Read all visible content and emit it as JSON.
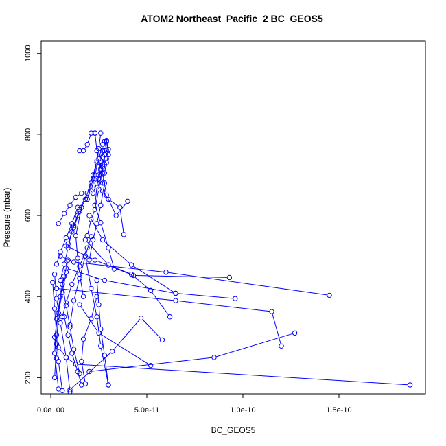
{
  "chart_data": {
    "type": "line",
    "title": "ATOM2 Northeast_Pacific_2 BC_GEOS5",
    "xlabel": "BC_GEOS5",
    "ylabel": "Pressure (mbar)",
    "xlim": [
      -5e-12,
      1.95e-10
    ],
    "ylim": [
      1030,
      160
    ],
    "y_inverted": true,
    "x_ticks": [
      {
        "value": 0,
        "label": "0.0e+00"
      },
      {
        "value": 5e-11,
        "label": "5.0e-11"
      },
      {
        "value": 1e-10,
        "label": "1.0e-10"
      },
      {
        "value": 1.5e-10,
        "label": "1.5e-10"
      }
    ],
    "y_ticks": [
      {
        "value": 200,
        "label": "200"
      },
      {
        "value": 400,
        "label": "400"
      },
      {
        "value": 600,
        "label": "600"
      },
      {
        "value": 800,
        "label": "800"
      },
      {
        "value": 1000,
        "label": "1000"
      }
    ],
    "grid": false,
    "legend": "none",
    "series_color": "#0000ff",
    "marker": "open-circle",
    "series": [
      {
        "x": [
          1.87e-10,
          1.3e-11,
          8e-12,
          4e-12
        ],
        "y": [
          182,
          233,
          250,
          275
        ]
      },
      {
        "x": [
          1.2e-10,
          1.15e-10,
          6.5e-11,
          3e-12
        ],
        "y": [
          278,
          363,
          390,
          420
        ]
      },
      {
        "x": [
          1.27e-10,
          8.5e-11,
          2e-11
        ],
        "y": [
          310,
          250,
          215
        ]
      },
      {
        "x": [
          1.45e-10,
          6e-11,
          1.2e-11,
          5e-12
        ],
        "y": [
          403,
          460,
          485,
          500
        ]
      },
      {
        "x": [
          9.6e-11,
          6.5e-11,
          2.8e-11,
          8e-12
        ],
        "y": [
          395,
          408,
          440,
          470
        ]
      },
      {
        "x": [
          9.3e-11,
          4.3e-11,
          2.3e-11,
          8e-12
        ],
        "y": [
          447,
          452,
          490,
          525
        ]
      },
      {
        "x": [
          6.2e-11,
          5.2e-11,
          4.2e-11,
          3e-11,
          1.8e-11
        ],
        "y": [
          350,
          415,
          455,
          478,
          540
        ]
      },
      {
        "x": [
          5.8e-11,
          4.7e-11,
          3.2e-11,
          1e-11
        ],
        "y": [
          293,
          347,
          265,
          170
        ]
      },
      {
        "x": [
          6.5e-11,
          4.2e-11,
          2.7e-11,
          2e-11
        ],
        "y": [
          408,
          478,
          540,
          600
        ]
      },
      {
        "x": [
          5.2e-11,
          2.5e-11,
          1.5e-11
        ],
        "y": [
          230,
          310,
          380
        ]
      },
      {
        "x": [
          3.3e-11,
          3e-11,
          2.6e-11,
          2.3e-11
        ],
        "y": [
          468,
          520,
          582,
          625
        ]
      },
      {
        "x": [
          3.8e-11,
          3.6e-11,
          3e-11,
          2.7e-11
        ],
        "y": [
          553,
          620,
          640,
          660
        ]
      },
      {
        "x": [
          4e-11,
          3.4e-11,
          2.9e-11,
          2.7e-11
        ],
        "y": [
          635,
          600,
          650,
          705
        ]
      },
      {
        "x": [
          3e-11,
          2.6e-11,
          2.4e-11,
          2.1e-11,
          1.8e-11
        ],
        "y": [
          182,
          278,
          350,
          420,
          500
        ]
      },
      {
        "x": [
          1e-11,
          8e-12,
          5e-12,
          3e-12,
          2e-12
        ],
        "y": [
          165,
          250,
          335,
          395,
          455
        ]
      },
      {
        "x": [
          6e-12,
          4e-12,
          3e-12,
          2e-12,
          1e-12
        ],
        "y": [
          168,
          240,
          305,
          370,
          435
        ]
      },
      {
        "x": [
          4e-12,
          2e-12,
          3e-12,
          5e-12,
          7e-12
        ],
        "y": [
          172,
          260,
          345,
          400,
          450
        ]
      },
      {
        "x": [
          2e-12,
          3e-12,
          4e-12,
          6e-12,
          9e-12
        ],
        "y": [
          200,
          283,
          360,
          430,
          490
        ]
      },
      {
        "x": [
          1.8e-11,
          1.6e-11,
          1.7e-11,
          2.1e-11,
          2.4e-11
        ],
        "y": [
          185,
          240,
          295,
          345,
          400
        ]
      },
      {
        "x": [
          1.5e-11,
          1.2e-11,
          1e-11,
          8e-12,
          6e-12
        ],
        "y": [
          210,
          270,
          325,
          378,
          430
        ]
      },
      {
        "x": [
          1e-11,
          1.2e-11,
          1.5e-11,
          1.8e-11,
          2.1e-11
        ],
        "y": [
          330,
          390,
          445,
          500,
          548
        ]
      },
      {
        "x": [
          1.7e-11,
          1.5e-11,
          1.4e-11,
          1.3e-11,
          1.6e-11
        ],
        "y": [
          400,
          455,
          495,
          550,
          620
        ]
      },
      {
        "x": [
          2e-11,
          2.2e-11,
          2.4e-11,
          2.6e-11,
          2.8e-11
        ],
        "y": [
          490,
          540,
          580,
          625,
          680
        ]
      },
      {
        "x": [
          1.9e-11,
          2.1e-11,
          2.3e-11,
          2.5e-11,
          2.7e-11
        ],
        "y": [
          550,
          590,
          615,
          665,
          720
        ]
      },
      {
        "x": [
          1.2e-11,
          1.5e-11,
          1.8e-11,
          2.1e-11,
          2.4e-11
        ],
        "y": [
          570,
          610,
          640,
          680,
          735
        ]
      },
      {
        "x": [
          9e-12,
          1.2e-11,
          1.5e-11,
          1.9e-11,
          2.2e-11
        ],
        "y": [
          530,
          575,
          615,
          655,
          700
        ]
      },
      {
        "x": [
          5e-12,
          7e-12,
          9e-12,
          1.1e-11,
          1.4e-11
        ],
        "y": [
          440,
          480,
          520,
          560,
          600
        ]
      },
      {
        "x": [
          3e-12,
          5e-12,
          8e-12,
          1.1e-11,
          1.4e-11
        ],
        "y": [
          480,
          510,
          545,
          580,
          620
        ]
      },
      {
        "x": [
          4e-12,
          7e-12,
          1e-11,
          1.3e-11,
          1.6e-11
        ],
        "y": [
          580,
          605,
          625,
          645,
          655
        ]
      },
      {
        "x": [
          2.6e-11,
          2.7e-11,
          2.8e-11,
          2.9e-11,
          2.8e-11
        ],
        "y": [
          700,
          725,
          750,
          762,
          783
        ]
      },
      {
        "x": [
          2.5e-11,
          2.6e-11,
          2.5e-11,
          2.4e-11,
          2.3e-11
        ],
        "y": [
          690,
          712,
          740,
          760,
          803
        ]
      },
      {
        "x": [
          2.7e-11,
          2.8e-11,
          2.9e-11,
          3e-11,
          2.9e-11
        ],
        "y": [
          680,
          705,
          730,
          750,
          782
        ]
      },
      {
        "x": [
          2.3e-11,
          2.4e-11,
          2.5e-11,
          2.6e-11,
          2.7e-11
        ],
        "y": [
          625,
          670,
          700,
          735,
          760
        ]
      },
      {
        "x": [
          1.9e-11,
          2.2e-11,
          2.4e-11,
          2.5e-11,
          2.6e-11
        ],
        "y": [
          640,
          690,
          730,
          765,
          803
        ]
      },
      {
        "x": [
          2.2e-11,
          2.4e-11,
          2.6e-11,
          2.7e-11,
          2.8e-11
        ],
        "y": [
          655,
          680,
          715,
          745,
          760
        ]
      },
      {
        "x": [
          2.1e-11,
          2.3e-11,
          2.5e-11,
          2.7e-11
        ],
        "y": [
          660,
          700,
          740,
          775
        ]
      },
      {
        "x": [
          1.5e-11,
          1.7e-11,
          1.9e-11,
          2.1e-11,
          2.3e-11
        ],
        "y": [
          760,
          760,
          775,
          803,
          803
        ]
      },
      {
        "x": [
          2.8e-11,
          2.9e-11,
          3e-11,
          2.9e-11
        ],
        "y": [
          725,
          740,
          763,
          785
        ]
      },
      {
        "x": [
          3e-11,
          2.8e-11,
          2.6e-11,
          2.5e-11,
          2.4e-11
        ],
        "y": [
          182,
          255,
          320,
          380,
          440
        ]
      },
      {
        "x": [
          1.6e-11,
          1.4e-11,
          1.1e-11,
          9e-12,
          7e-12
        ],
        "y": [
          182,
          215,
          260,
          305,
          350
        ]
      },
      {
        "x": [
          6e-12,
          8e-12,
          1.1e-11,
          1.5e-11,
          1.9e-11
        ],
        "y": [
          350,
          385,
          430,
          475,
          520
        ]
      },
      {
        "x": [
          3e-12,
          2e-12,
          4e-12,
          6e-12,
          8e-12
        ],
        "y": [
          248,
          300,
          360,
          410,
          460
        ]
      }
    ]
  }
}
